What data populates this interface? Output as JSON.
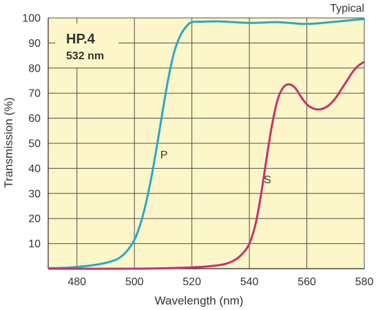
{
  "chart_data": {
    "type": "line",
    "title": "HP.4",
    "subtitle": "532 nm",
    "corner_note": "Typical",
    "xlabel": "Wavelength (nm)",
    "ylabel": "Transmission (%)",
    "xlim": [
      470,
      580
    ],
    "ylim": [
      0,
      100
    ],
    "x_ticks": [
      480,
      500,
      520,
      540,
      560,
      580
    ],
    "y_ticks": [
      10,
      20,
      30,
      40,
      50,
      60,
      70,
      80,
      90,
      100
    ],
    "grid": true,
    "background_color": "#FCF6C8",
    "grid_color": "#4d4d4d",
    "series": [
      {
        "name": "P",
        "color": "#2BA7C7",
        "label_at": {
          "x": 509,
          "y": 44
        },
        "x": [
          470,
          475,
          480,
          485,
          490,
          494,
          497,
          500,
          502,
          504,
          506,
          508,
          510,
          512,
          514,
          516,
          518,
          520,
          524,
          530,
          540,
          550,
          560,
          570,
          580
        ],
        "y": [
          0.2,
          0.3,
          0.7,
          1.3,
          2.3,
          3.8,
          6.5,
          11.5,
          17.5,
          26,
          37,
          50,
          64,
          77,
          87,
          93,
          96.5,
          98.3,
          98.5,
          98.6,
          98.0,
          98.3,
          97.6,
          98.5,
          99.6
        ]
      },
      {
        "name": "S",
        "color": "#C7306E",
        "label_at": {
          "x": 545,
          "y": 34
        },
        "x": [
          470,
          500,
          520,
          530,
          535,
          538,
          540,
          542,
          544,
          546,
          548,
          550,
          552,
          554,
          556,
          558,
          560,
          562,
          564,
          566,
          568,
          570,
          572,
          574,
          576,
          578,
          580
        ],
        "y": [
          0,
          0,
          0.5,
          1.5,
          3.5,
          6.5,
          10,
          17,
          29,
          44,
          58,
          68,
          72.5,
          73.5,
          72,
          68.5,
          65.5,
          64,
          63.5,
          64,
          65.5,
          68,
          71.5,
          75,
          78.5,
          81,
          82.5
        ]
      }
    ]
  }
}
